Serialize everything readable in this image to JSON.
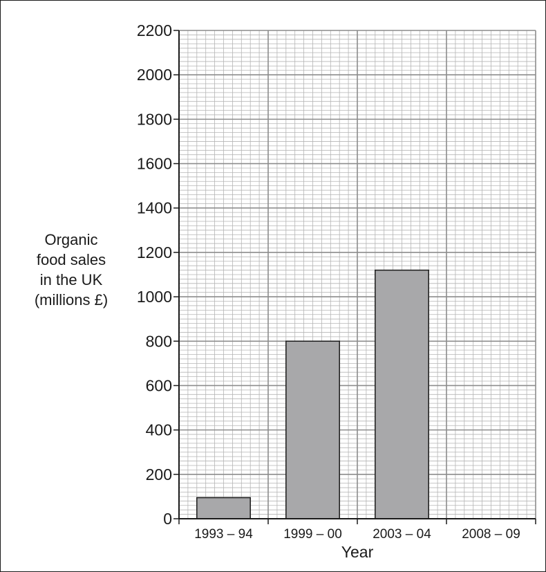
{
  "chart_data": {
    "type": "bar",
    "categories": [
      "1993 – 94",
      "1999 – 00",
      "2003 – 04",
      "2008 – 09"
    ],
    "values": [
      95,
      800,
      1120,
      null
    ],
    "xlabel": "Year",
    "ylabel_lines": [
      "Organic",
      "food sales",
      "in the UK",
      "(millions £)"
    ],
    "ylim": [
      0,
      2200
    ],
    "yticks": [
      0,
      200,
      400,
      600,
      800,
      1000,
      1200,
      1400,
      1600,
      1800,
      2000,
      2200
    ],
    "grid": true,
    "colors": {
      "bar_fill": "#a8a8aa",
      "bar_stroke": "#1a1a1a",
      "grid_major": "#8c8c8c",
      "grid_minor": "#b5b5b5",
      "axis": "#1a1a1a"
    }
  }
}
